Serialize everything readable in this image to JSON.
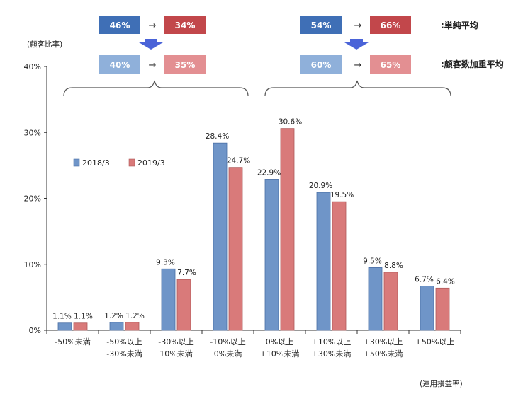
{
  "chart_data": {
    "type": "bar",
    "ylabel": "(顧客比率)",
    "xlabel": "(運用損益率)",
    "ylim": [
      0,
      40
    ],
    "yticks": [
      "0%",
      "10%",
      "20%",
      "30%",
      "40%"
    ],
    "categories": [
      [
        "-50%未満"
      ],
      [
        "-50%以上",
        "-30%未満"
      ],
      [
        "-30%以上",
        "10%未満"
      ],
      [
        "-10%以上",
        "0%未満"
      ],
      [
        "0%以上",
        "+10%未満"
      ],
      [
        "+10%以上",
        "+30%未満"
      ],
      [
        "+30%以上",
        "+50%未満"
      ],
      [
        "+50%以上"
      ]
    ],
    "series": [
      {
        "name": "2018/3",
        "color": "#6f95c8",
        "values": [
          1.1,
          1.2,
          9.3,
          28.4,
          22.9,
          20.9,
          9.5,
          6.7
        ],
        "labels": [
          "1.1%",
          "1.2%",
          "9.3%",
          "28.4%",
          "22.9%",
          "20.9%",
          "9.5%",
          "6.7%"
        ]
      },
      {
        "name": "2019/3",
        "color": "#d97a7a",
        "values": [
          1.1,
          1.2,
          7.7,
          24.7,
          30.6,
          19.5,
          8.8,
          6.4
        ],
        "labels": [
          "1.1%",
          "1.2%",
          "7.7%",
          "24.7%",
          "30.6%",
          "19.5%",
          "8.8%",
          "6.4%"
        ]
      }
    ],
    "legend_position": "upper-left",
    "grid": false
  },
  "summary": {
    "left": {
      "simple": {
        "from": "46%",
        "to": "34%"
      },
      "weighted": {
        "from": "40%",
        "to": "35%"
      }
    },
    "right": {
      "simple": {
        "from": "54%",
        "to": "66%"
      },
      "weighted": {
        "from": "60%",
        "to": "65%"
      }
    },
    "arrow": "→",
    "key_simple": ":単純平均",
    "key_weighted": ":顧客数加重平均"
  },
  "colors": {
    "simple_from": "#3f6fb6",
    "simple_to": "#c2474b",
    "weighted_from": "#8fb0da",
    "weighted_to": "#e38f92",
    "down_arrow": "#4a63d8"
  }
}
